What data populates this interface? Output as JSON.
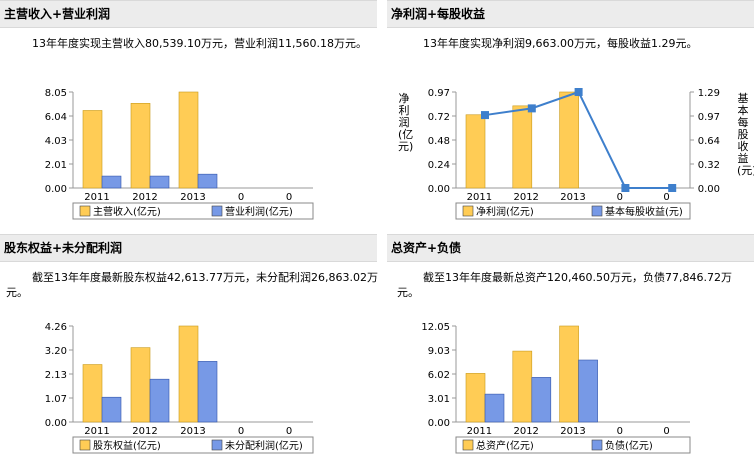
{
  "colors": {
    "bar1": "#ffcc55",
    "bar1_stroke": "#c99a1a",
    "bar2": "#7799e6",
    "bar2_stroke": "#3355aa",
    "line": "#3e7fcc",
    "header_bg": "#ececec"
  },
  "panels": [
    {
      "title": "主营收入+营业利润",
      "desc": "13年年度实现主营收入80,539.10万元，营业利润11,560.18万元。",
      "legend": [
        "主营收入(亿元)",
        "营业利润(亿元)"
      ]
    },
    {
      "title": "净利润+每股收益",
      "desc": "13年年度实现净利润9,663.00万元，每股收益1.29元。",
      "legend": [
        "净利润(亿元)",
        "基本每股收益(元)"
      ],
      "y_left_label": "净利润(亿元)",
      "y_right_label": "基本每股收益(元)"
    },
    {
      "title": "股东权益+未分配利润",
      "desc": "截至13年年度最新股东权益42,613.77万元，未分配利润26,863.02万元。",
      "legend": [
        "股东权益(亿元)",
        "未分配利润(亿元)"
      ]
    },
    {
      "title": "总资产+负债",
      "desc": "截至13年年度最新总资产120,460.50万元，负债77,846.72万元。",
      "legend": [
        "总资产(亿元)",
        "负债(亿元)"
      ]
    }
  ],
  "chart_data": [
    {
      "type": "bar",
      "title": "主营收入+营业利润",
      "categories": [
        "2011",
        "2012",
        "2013",
        "0",
        "0"
      ],
      "series": [
        {
          "name": "主营收入(亿元)",
          "values": [
            6.5,
            7.1,
            8.05,
            null,
            null
          ]
        },
        {
          "name": "营业利润(亿元)",
          "values": [
            1.0,
            1.0,
            1.16,
            null,
            null
          ]
        }
      ],
      "yticks": [
        "0.00",
        "2.01",
        "4.03",
        "6.04",
        "8.05"
      ],
      "ylim": [
        0,
        8.05
      ],
      "legend": "bottom"
    },
    {
      "type": "bar+line",
      "title": "净利润+每股收益",
      "categories": [
        "2011",
        "2012",
        "2013",
        "0",
        "0"
      ],
      "series": [
        {
          "name": "净利润(亿元)",
          "type": "bar",
          "axis": "left",
          "values": [
            0.74,
            0.83,
            0.97,
            null,
            null
          ]
        },
        {
          "name": "基本每股收益(元)",
          "type": "line",
          "axis": "right",
          "values": [
            0.98,
            1.07,
            1.29,
            0,
            0
          ]
        }
      ],
      "yticks_left": [
        "0.00",
        "0.24",
        "0.48",
        "0.72",
        "0.97"
      ],
      "ylim_left": [
        0,
        0.97
      ],
      "yticks_right": [
        "0.00",
        "0.32",
        "0.64",
        "0.97",
        "1.29"
      ],
      "ylim_right": [
        0,
        1.29
      ],
      "legend": "bottom"
    },
    {
      "type": "bar",
      "title": "股东权益+未分配利润",
      "categories": [
        "2011",
        "2012",
        "2013",
        "0",
        "0"
      ],
      "series": [
        {
          "name": "股东权益(亿元)",
          "values": [
            2.55,
            3.3,
            4.26,
            null,
            null
          ]
        },
        {
          "name": "未分配利润(亿元)",
          "values": [
            1.1,
            1.9,
            2.69,
            null,
            null
          ]
        }
      ],
      "yticks": [
        "0.00",
        "1.07",
        "2.13",
        "3.20",
        "4.26"
      ],
      "ylim": [
        0,
        4.26
      ],
      "legend": "bottom"
    },
    {
      "type": "bar",
      "title": "总资产+负债",
      "categories": [
        "2011",
        "2012",
        "2013",
        "0",
        "0"
      ],
      "series": [
        {
          "name": "总资产(亿元)",
          "values": [
            6.1,
            8.9,
            12.05,
            null,
            null
          ]
        },
        {
          "name": "负债(亿元)",
          "values": [
            3.5,
            5.6,
            7.78,
            null,
            null
          ]
        }
      ],
      "yticks": [
        "0.00",
        "3.01",
        "6.02",
        "9.03",
        "12.05"
      ],
      "ylim": [
        0,
        12.05
      ],
      "legend": "bottom"
    }
  ]
}
